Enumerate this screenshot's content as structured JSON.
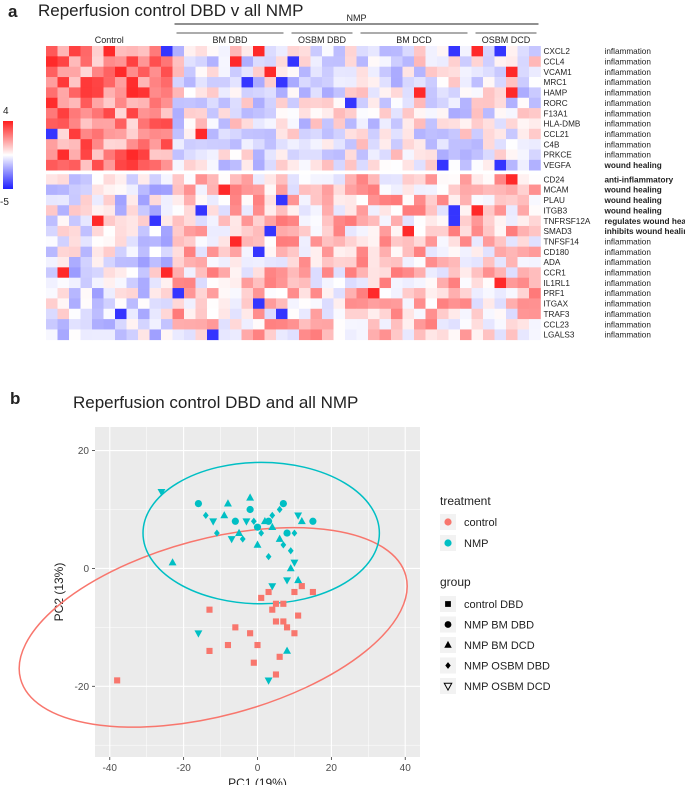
{
  "panel_a": {
    "letter": "a",
    "title": "Reperfusion control DBD v all NMP",
    "nmp_label": "NMP",
    "group_labels": [
      "Control",
      "BM DBD",
      "OSBM DBD",
      "BM DCD",
      "OSBM DCD"
    ],
    "scale_max_label": "4",
    "scale_min_label": "-5"
  },
  "panel_b": {
    "letter": "b",
    "title": "Reperfusion control DBD and all NMP"
  },
  "chart_data": [
    {
      "type": "heatmap",
      "title": "Reperfusion control DBD v all NMP",
      "color_scale": {
        "min": -5,
        "max": 4,
        "low_color": "#1e1eff",
        "mid_color": "#ffffff",
        "high_color": "#ff1e1e"
      },
      "column_groups": [
        {
          "name": "Control",
          "columns": 11
        },
        {
          "name": "BM DBD",
          "columns": 10
        },
        {
          "name": "OSBM DBD",
          "columns": 6
        },
        {
          "name": "BM DCD",
          "columns": 10
        },
        {
          "name": "OSBM DCD",
          "columns": 6
        }
      ],
      "row_split_after": 12,
      "rows": [
        {
          "gene": "CXCL2",
          "function": "inflammation",
          "bold": false
        },
        {
          "gene": "CCL4",
          "function": "inflammation",
          "bold": false
        },
        {
          "gene": "VCAM1",
          "function": "inflammation",
          "bold": false
        },
        {
          "gene": "MRC1",
          "function": "inflammation",
          "bold": false
        },
        {
          "gene": "HAMP",
          "function": "inflammation",
          "bold": false
        },
        {
          "gene": "RORC",
          "function": "inflammation",
          "bold": false
        },
        {
          "gene": "F13A1",
          "function": "inflammation",
          "bold": false
        },
        {
          "gene": "HLA-DMB",
          "function": "inflammation",
          "bold": false
        },
        {
          "gene": "CCL21",
          "function": "inflammation",
          "bold": false
        },
        {
          "gene": "C4B",
          "function": "inflammation",
          "bold": false
        },
        {
          "gene": "PRKCE",
          "function": "inflammation",
          "bold": false
        },
        {
          "gene": "VEGFA",
          "function": "wound healing",
          "bold": true
        },
        {
          "gene": "CD24",
          "function": "anti-inflammatory",
          "bold": true
        },
        {
          "gene": "MCAM",
          "function": "wound healing",
          "bold": true
        },
        {
          "gene": "PLAU",
          "function": "wound healing",
          "bold": true
        },
        {
          "gene": "ITGB3",
          "function": "wound healing",
          "bold": true
        },
        {
          "gene": "TNFRSF12A",
          "function": "regulates wound healing",
          "bold": true
        },
        {
          "gene": "SMAD3",
          "function": "inhibits wound healing",
          "bold": true
        },
        {
          "gene": "TNFSF14",
          "function": "inflammation",
          "bold": false
        },
        {
          "gene": "CD180",
          "function": "inflammation",
          "bold": false
        },
        {
          "gene": "ADA",
          "function": "inflammation",
          "bold": false
        },
        {
          "gene": "CCR1",
          "function": "inflammation",
          "bold": false
        },
        {
          "gene": "IL1RL1",
          "function": "inflammation",
          "bold": false
        },
        {
          "gene": "PRF1",
          "function": "inflammation",
          "bold": false
        },
        {
          "gene": "ITGAX",
          "function": "inflammation",
          "bold": false
        },
        {
          "gene": "TRAF3",
          "function": "inflammation",
          "bold": false
        },
        {
          "gene": "CCL23",
          "function": "inflammation",
          "bold": false
        },
        {
          "gene": "LGALS3",
          "function": "inflammation",
          "bold": false
        }
      ],
      "row_bias_top": [
        2.2,
        -0.3
      ],
      "row_bias_bottom": [
        -0.6,
        0.8
      ],
      "seed": 17
    },
    {
      "type": "scatter",
      "title": "Reperfusion control DBD and all NMP",
      "xlabel": "PC1 (19%)",
      "ylabel": "PC2 (13%)",
      "xlim": [
        -44,
        44
      ],
      "ylim": [
        -32,
        24
      ],
      "xticks": [
        -40,
        -20,
        0,
        20,
        40
      ],
      "yticks": [
        -20,
        0,
        20
      ],
      "grid": true,
      "legend": {
        "treatment_title": "treatment",
        "treatment_items": [
          {
            "label": "control",
            "color": "#f8766d"
          },
          {
            "label": "NMP",
            "color": "#00bfc4"
          }
        ],
        "group_title": "group",
        "group_items": [
          {
            "label": "control DBD",
            "shape": "square"
          },
          {
            "label": "NMP BM DBD",
            "shape": "circle"
          },
          {
            "label": "NMP BM DCD",
            "shape": "triangle"
          },
          {
            "label": "NMP OSBM DBD",
            "shape": "diamond"
          },
          {
            "label": "NMP OSBM DCD",
            "shape": "triangle-down"
          }
        ]
      },
      "ellipses": [
        {
          "treatment": "control",
          "cx": -12,
          "cy": -10,
          "rx": 54,
          "ry": 15,
          "angle_deg": 15
        },
        {
          "treatment": "NMP",
          "cx": 1,
          "cy": 6,
          "rx": 32,
          "ry": 12,
          "angle_deg": 0
        }
      ],
      "series": [
        {
          "name": "control DBD",
          "treatment": "control",
          "shape": "square",
          "points": [
            [
              -38,
              -19
            ],
            [
              -13,
              -7
            ],
            [
              -13,
              -14
            ],
            [
              -8,
              -13
            ],
            [
              -6,
              -10
            ],
            [
              -2,
              -11
            ],
            [
              -1,
              -16
            ],
            [
              0,
              -13
            ],
            [
              1,
              -5
            ],
            [
              3,
              -4
            ],
            [
              4,
              -7
            ],
            [
              5,
              -6
            ],
            [
              5,
              -9
            ],
            [
              5,
              -18
            ],
            [
              6,
              -15
            ],
            [
              7,
              -6
            ],
            [
              7,
              -9
            ],
            [
              8,
              -10
            ],
            [
              10,
              -11
            ],
            [
              10,
              -4
            ],
            [
              11,
              -8
            ],
            [
              12,
              -3
            ],
            [
              15,
              -4
            ]
          ]
        },
        {
          "name": "NMP BM DBD",
          "treatment": "NMP",
          "shape": "circle",
          "points": [
            [
              -16,
              11
            ],
            [
              -6,
              8
            ],
            [
              -2,
              10
            ],
            [
              0,
              7
            ],
            [
              3,
              8
            ],
            [
              7,
              11
            ],
            [
              8,
              6
            ],
            [
              15,
              8
            ]
          ]
        },
        {
          "name": "NMP BM DCD",
          "treatment": "NMP",
          "shape": "triangle",
          "points": [
            [
              -23,
              1
            ],
            [
              -9,
              9
            ],
            [
              -8,
              11
            ],
            [
              -5,
              6
            ],
            [
              -2,
              12
            ],
            [
              0,
              4
            ],
            [
              2,
              8
            ],
            [
              4,
              7
            ],
            [
              6,
              5
            ],
            [
              8,
              -14
            ],
            [
              9,
              0
            ],
            [
              11,
              -2
            ],
            [
              12,
              8
            ]
          ]
        },
        {
          "name": "NMP OSBM DBD",
          "treatment": "NMP",
          "shape": "diamond",
          "points": [
            [
              -14,
              9
            ],
            [
              -11,
              6
            ],
            [
              -4,
              5
            ],
            [
              -1,
              8
            ],
            [
              1,
              6
            ],
            [
              3,
              2
            ],
            [
              4,
              9
            ],
            [
              6,
              10
            ],
            [
              7,
              4
            ],
            [
              9,
              3
            ],
            [
              10,
              6
            ]
          ]
        },
        {
          "name": "NMP OSBM DCD",
          "treatment": "NMP",
          "shape": "triangle-down",
          "points": [
            [
              -26,
              13
            ],
            [
              -16,
              -11
            ],
            [
              -3,
              8
            ],
            [
              -7,
              5
            ],
            [
              4,
              -3
            ],
            [
              8,
              -2
            ],
            [
              10,
              1
            ],
            [
              11,
              9
            ],
            [
              3,
              -19
            ],
            [
              -12,
              8
            ]
          ]
        }
      ]
    }
  ]
}
